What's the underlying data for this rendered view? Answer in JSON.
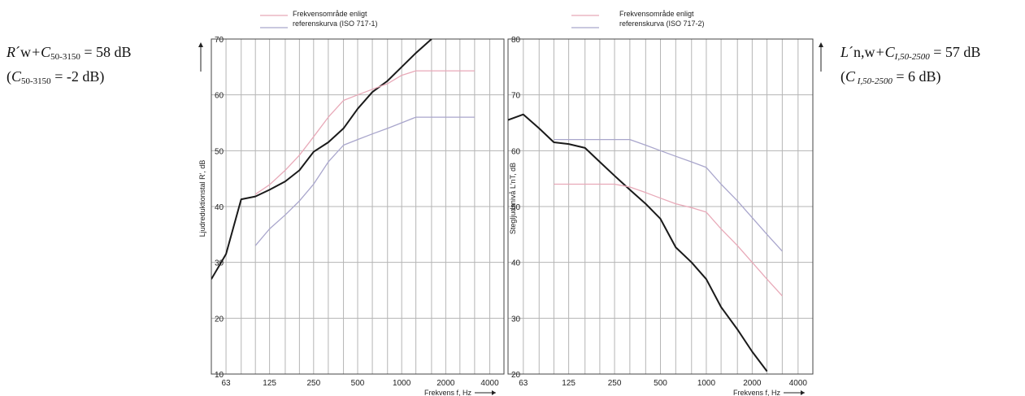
{
  "left_annotation": {
    "line1": {
      "R": "R",
      "prime_w": "´w",
      "plus_C": "+C",
      "sub": "50-3150",
      "rest": " = 58 dB"
    },
    "line2": {
      "open": "(",
      "C": "C",
      "sub": "50-3150",
      "rest": " = -2 dB)"
    }
  },
  "right_annotation": {
    "line1": {
      "L": "L",
      "prime_nw": "´n,w",
      "plus_C": "+C",
      "sub": "I,50-2500",
      "rest": " = 57 dB"
    },
    "line2": {
      "open": "(",
      "C": "C",
      "sub": " I,50-2500",
      "rest": " = 6 dB)"
    }
  },
  "colors": {
    "measured": "#1a1a1a",
    "pink": "#e8a9b8",
    "blue": "#a9a6cc",
    "grid": "#b5b5b5",
    "frame": "#444444"
  },
  "chart_data": [
    {
      "type": "line",
      "title": "",
      "xlabel": "Frekvens f, Hz",
      "ylabel": "Ljudreduktionstal R', dB",
      "x_scale": "log",
      "xlim": [
        50,
        5000
      ],
      "ylim": [
        10,
        70
      ],
      "y_ticks": [
        10,
        20,
        30,
        40,
        50,
        60,
        70
      ],
      "x_tick_labels": [
        {
          "value": 63,
          "label": "63"
        },
        {
          "value": 125,
          "label": "125"
        },
        {
          "value": 250,
          "label": "250"
        },
        {
          "value": 500,
          "label": "500"
        },
        {
          "value": 1000,
          "label": "1000"
        },
        {
          "value": 2000,
          "label": "2000"
        },
        {
          "value": 4000,
          "label": "4000"
        }
      ],
      "grid_x": [
        63,
        80,
        100,
        125,
        160,
        200,
        250,
        315,
        400,
        500,
        630,
        800,
        1000,
        1250,
        1600,
        2000,
        2500,
        3150,
        4000
      ],
      "legend": {
        "placement": "top-center",
        "line1": "Frekvensområde enligt",
        "line2": "referenskurva (ISO 717-1)"
      },
      "series": [
        {
          "role": "measured",
          "x": [
            50,
            63,
            80,
            100,
            125,
            160,
            200,
            250,
            315,
            400,
            500,
            630,
            800,
            1000,
            1250,
            1600
          ],
          "values": [
            27,
            31.5,
            41.3,
            41.8,
            43,
            44.5,
            46.5,
            49.8,
            51.5,
            54,
            57.5,
            60.5,
            62.5,
            65,
            67.5,
            70
          ]
        },
        {
          "role": "pink",
          "x": [
            100,
            125,
            160,
            200,
            250,
            315,
            400,
            500,
            630,
            800,
            1000,
            1250,
            1600,
            2000,
            2500,
            3150
          ],
          "values": [
            42.2,
            43.9,
            46.5,
            49.2,
            52.5,
            56,
            59,
            60,
            61,
            62,
            63.5,
            64.3,
            64.3,
            64.3,
            64.3,
            64.3
          ]
        },
        {
          "role": "blue",
          "x": [
            100,
            125,
            160,
            200,
            250,
            315,
            400,
            500,
            630,
            800,
            1000,
            1250,
            1600,
            2000,
            2500,
            3150
          ],
          "values": [
            33,
            36,
            38.5,
            41,
            44,
            48,
            51,
            52,
            53,
            54,
            55,
            56,
            56,
            56,
            56,
            56
          ]
        }
      ]
    },
    {
      "type": "line",
      "title": "",
      "xlabel": "Frekvens f, Hz",
      "ylabel": "Stegljudsnivå L'nT, dB",
      "x_scale": "log",
      "xlim": [
        50,
        5000
      ],
      "ylim": [
        20,
        80
      ],
      "y_ticks": [
        20,
        30,
        40,
        50,
        60,
        70,
        80
      ],
      "x_tick_labels": [
        {
          "value": 63,
          "label": "63"
        },
        {
          "value": 125,
          "label": "125"
        },
        {
          "value": 250,
          "label": "250"
        },
        {
          "value": 500,
          "label": "500"
        },
        {
          "value": 1000,
          "label": "1000"
        },
        {
          "value": 2000,
          "label": "2000"
        },
        {
          "value": 4000,
          "label": "4000"
        }
      ],
      "grid_x": [
        63,
        80,
        100,
        125,
        160,
        200,
        250,
        315,
        400,
        500,
        630,
        800,
        1000,
        1250,
        1600,
        2000,
        2500,
        3150,
        4000
      ],
      "legend": {
        "placement": "top-center",
        "line1": "Frekvensområde enligt",
        "line2": "referenskurva (ISO 717-2)"
      },
      "series": [
        {
          "role": "measured",
          "x": [
            50,
            63,
            80,
            100,
            125,
            160,
            200,
            250,
            315,
            400,
            500,
            630,
            800,
            1000,
            1250,
            1600,
            2000,
            2500
          ],
          "values": [
            65.5,
            66.5,
            64,
            61.5,
            61.2,
            60.5,
            58,
            55.5,
            53,
            50.5,
            47.8,
            42.7,
            40,
            37,
            32,
            28,
            24,
            20.5
          ]
        },
        {
          "role": "blue",
          "x": [
            100,
            125,
            160,
            200,
            250,
            315,
            400,
            500,
            630,
            800,
            1000,
            1250,
            1600,
            2000,
            2500,
            3150
          ],
          "values": [
            62,
            62,
            62,
            62,
            62,
            62,
            61,
            60,
            59,
            58,
            57,
            54,
            51,
            48,
            45,
            42
          ]
        },
        {
          "role": "pink",
          "x": [
            100,
            125,
            160,
            200,
            250,
            315,
            400,
            500,
            630,
            800,
            1000,
            1250,
            1600,
            2000,
            2500,
            3150
          ],
          "values": [
            54,
            54,
            54,
            54,
            54,
            53.5,
            52.5,
            51.5,
            50.5,
            49.8,
            49,
            46,
            43,
            40,
            37,
            34
          ]
        }
      ]
    }
  ]
}
